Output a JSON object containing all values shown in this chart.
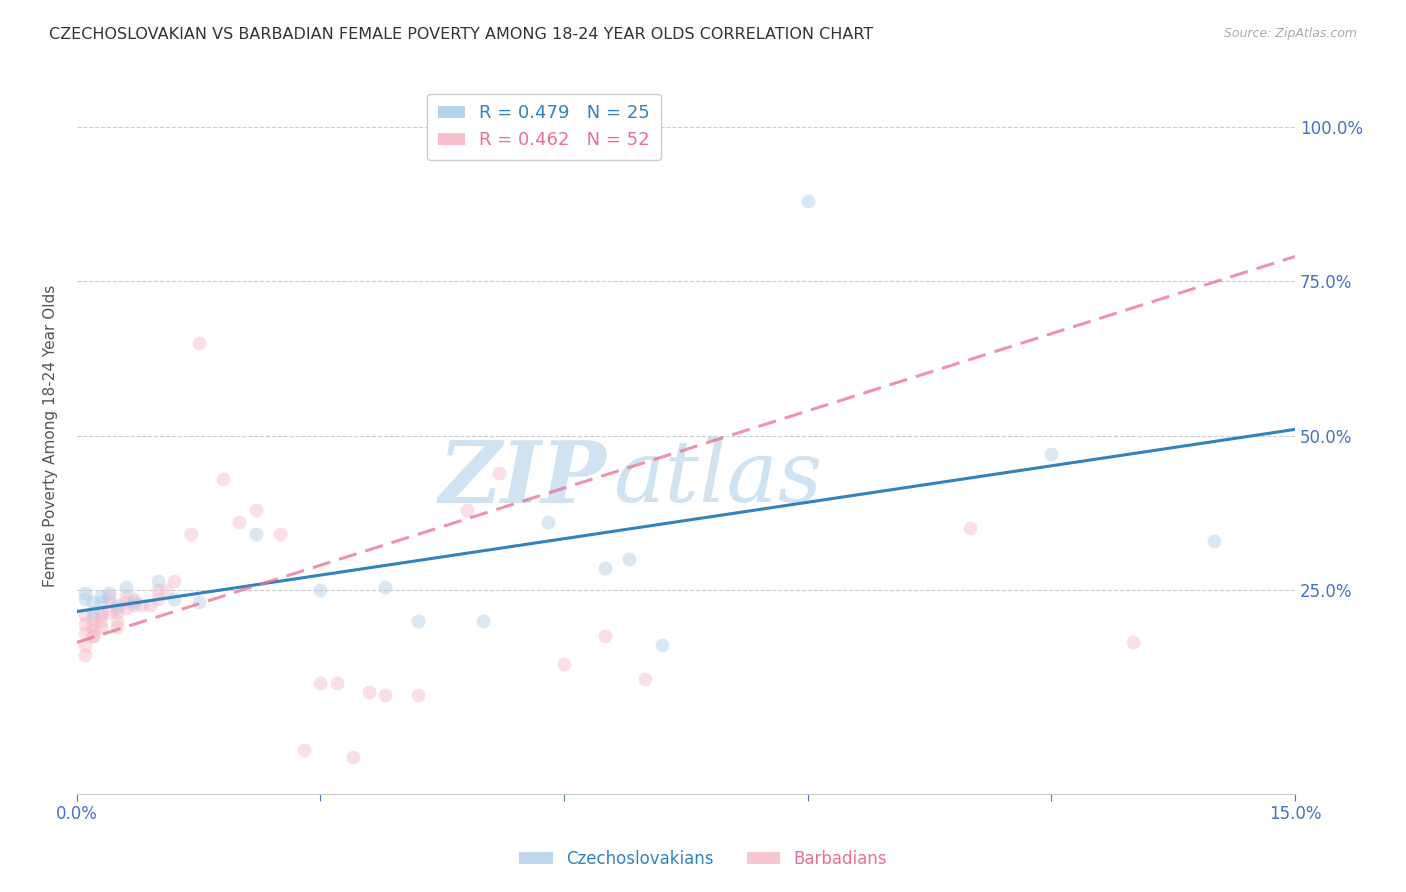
{
  "title": "CZECHOSLOVAKIAN VS BARBADIAN FEMALE POVERTY AMONG 18-24 YEAR OLDS CORRELATION CHART",
  "source": "Source: ZipAtlas.com",
  "ylabel": "Female Poverty Among 18-24 Year Olds",
  "xlim": [
    0.0,
    0.15
  ],
  "ylim": [
    -0.08,
    1.08
  ],
  "xticks": [
    0.0,
    0.03,
    0.06,
    0.09,
    0.12,
    0.15
  ],
  "xticklabels": [
    "0.0%",
    "",
    "",
    "",
    "",
    "15.0%"
  ],
  "ytick_positions": [
    0.25,
    0.5,
    0.75,
    1.0
  ],
  "yticklabels": [
    "25.0%",
    "50.0%",
    "75.0%",
    "100.0%"
  ],
  "grid_color": "#cccccc",
  "watermark_zip": "ZIP",
  "watermark_atlas": "atlas",
  "legend_R1": "R = 0.479",
  "legend_N1": "N = 25",
  "legend_R2": "R = 0.462",
  "legend_N2": "N = 52",
  "czech_color": "#aecde8",
  "barbadian_color": "#f4b8c8",
  "czech_line_color": "#3182bd",
  "barbadian_line_color": "#e8718d",
  "tick_color": "#4472c4",
  "czech_scatter_x": [
    0.001,
    0.001,
    0.002,
    0.002,
    0.003,
    0.003,
    0.004,
    0.005,
    0.006,
    0.007,
    0.01,
    0.012,
    0.015,
    0.022,
    0.03,
    0.038,
    0.042,
    0.05,
    0.058,
    0.065,
    0.068,
    0.072,
    0.09,
    0.12,
    0.14
  ],
  "czech_scatter_y": [
    0.235,
    0.245,
    0.215,
    0.23,
    0.24,
    0.23,
    0.245,
    0.225,
    0.255,
    0.23,
    0.265,
    0.235,
    0.23,
    0.34,
    0.25,
    0.255,
    0.2,
    0.2,
    0.36,
    0.285,
    0.3,
    0.16,
    0.88,
    0.47,
    0.33
  ],
  "barbadian_scatter_x": [
    0.001,
    0.001,
    0.001,
    0.001,
    0.001,
    0.002,
    0.002,
    0.002,
    0.002,
    0.002,
    0.003,
    0.003,
    0.003,
    0.003,
    0.004,
    0.004,
    0.004,
    0.005,
    0.005,
    0.005,
    0.005,
    0.006,
    0.006,
    0.006,
    0.007,
    0.007,
    0.008,
    0.009,
    0.01,
    0.01,
    0.011,
    0.012,
    0.014,
    0.015,
    0.018,
    0.02,
    0.022,
    0.025,
    0.028,
    0.03,
    0.032,
    0.034,
    0.036,
    0.038,
    0.042,
    0.048,
    0.052,
    0.06,
    0.065,
    0.07,
    0.11,
    0.13
  ],
  "barbadian_scatter_y": [
    0.21,
    0.195,
    0.18,
    0.16,
    0.145,
    0.175,
    0.185,
    0.195,
    0.205,
    0.175,
    0.215,
    0.21,
    0.2,
    0.19,
    0.24,
    0.23,
    0.215,
    0.22,
    0.215,
    0.2,
    0.19,
    0.22,
    0.24,
    0.23,
    0.235,
    0.225,
    0.225,
    0.225,
    0.235,
    0.25,
    0.25,
    0.265,
    0.34,
    0.65,
    0.43,
    0.36,
    0.38,
    0.34,
    -0.01,
    0.1,
    0.1,
    -0.02,
    0.085,
    0.08,
    0.08,
    0.38,
    0.44,
    0.13,
    0.175,
    0.105,
    0.35,
    0.165
  ],
  "czech_trendline_x": [
    0.0,
    0.15
  ],
  "czech_trendline_y": [
    0.215,
    0.51
  ],
  "barbadian_trendline_x": [
    0.0,
    0.15
  ],
  "barbadian_trendline_y": [
    0.165,
    0.79
  ],
  "marker_size": 100,
  "marker_alpha": 0.45,
  "bg_color": "#ffffff",
  "fig_bg_color": "#ffffff"
}
